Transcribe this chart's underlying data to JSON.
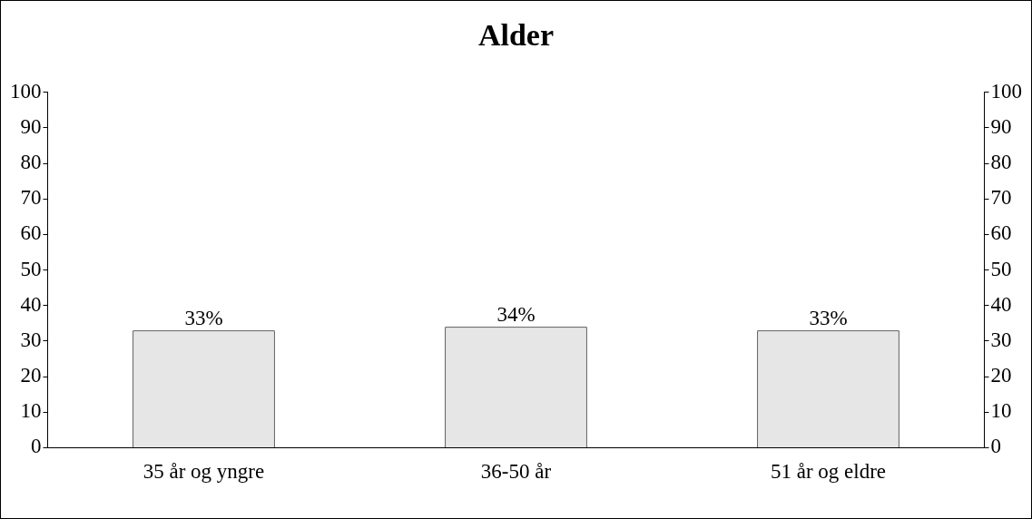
{
  "chart_data": {
    "type": "bar",
    "title": "Alder",
    "categories": [
      "35 år og yngre",
      "36-50 år",
      "51 år og eldre"
    ],
    "values": [
      33,
      34,
      33
    ],
    "color": "#e6e6e6",
    "value_labels": [
      "33%",
      "34%",
      "33%"
    ],
    "ylim": [
      0,
      100
    ],
    "yticks": [
      0,
      10,
      20,
      30,
      40,
      50,
      60,
      70,
      80,
      90,
      100
    ],
    "y2lim": [
      0,
      100
    ],
    "y2ticks": [
      0,
      10,
      20,
      30,
      40,
      50,
      60,
      70,
      80,
      90,
      100
    ]
  }
}
